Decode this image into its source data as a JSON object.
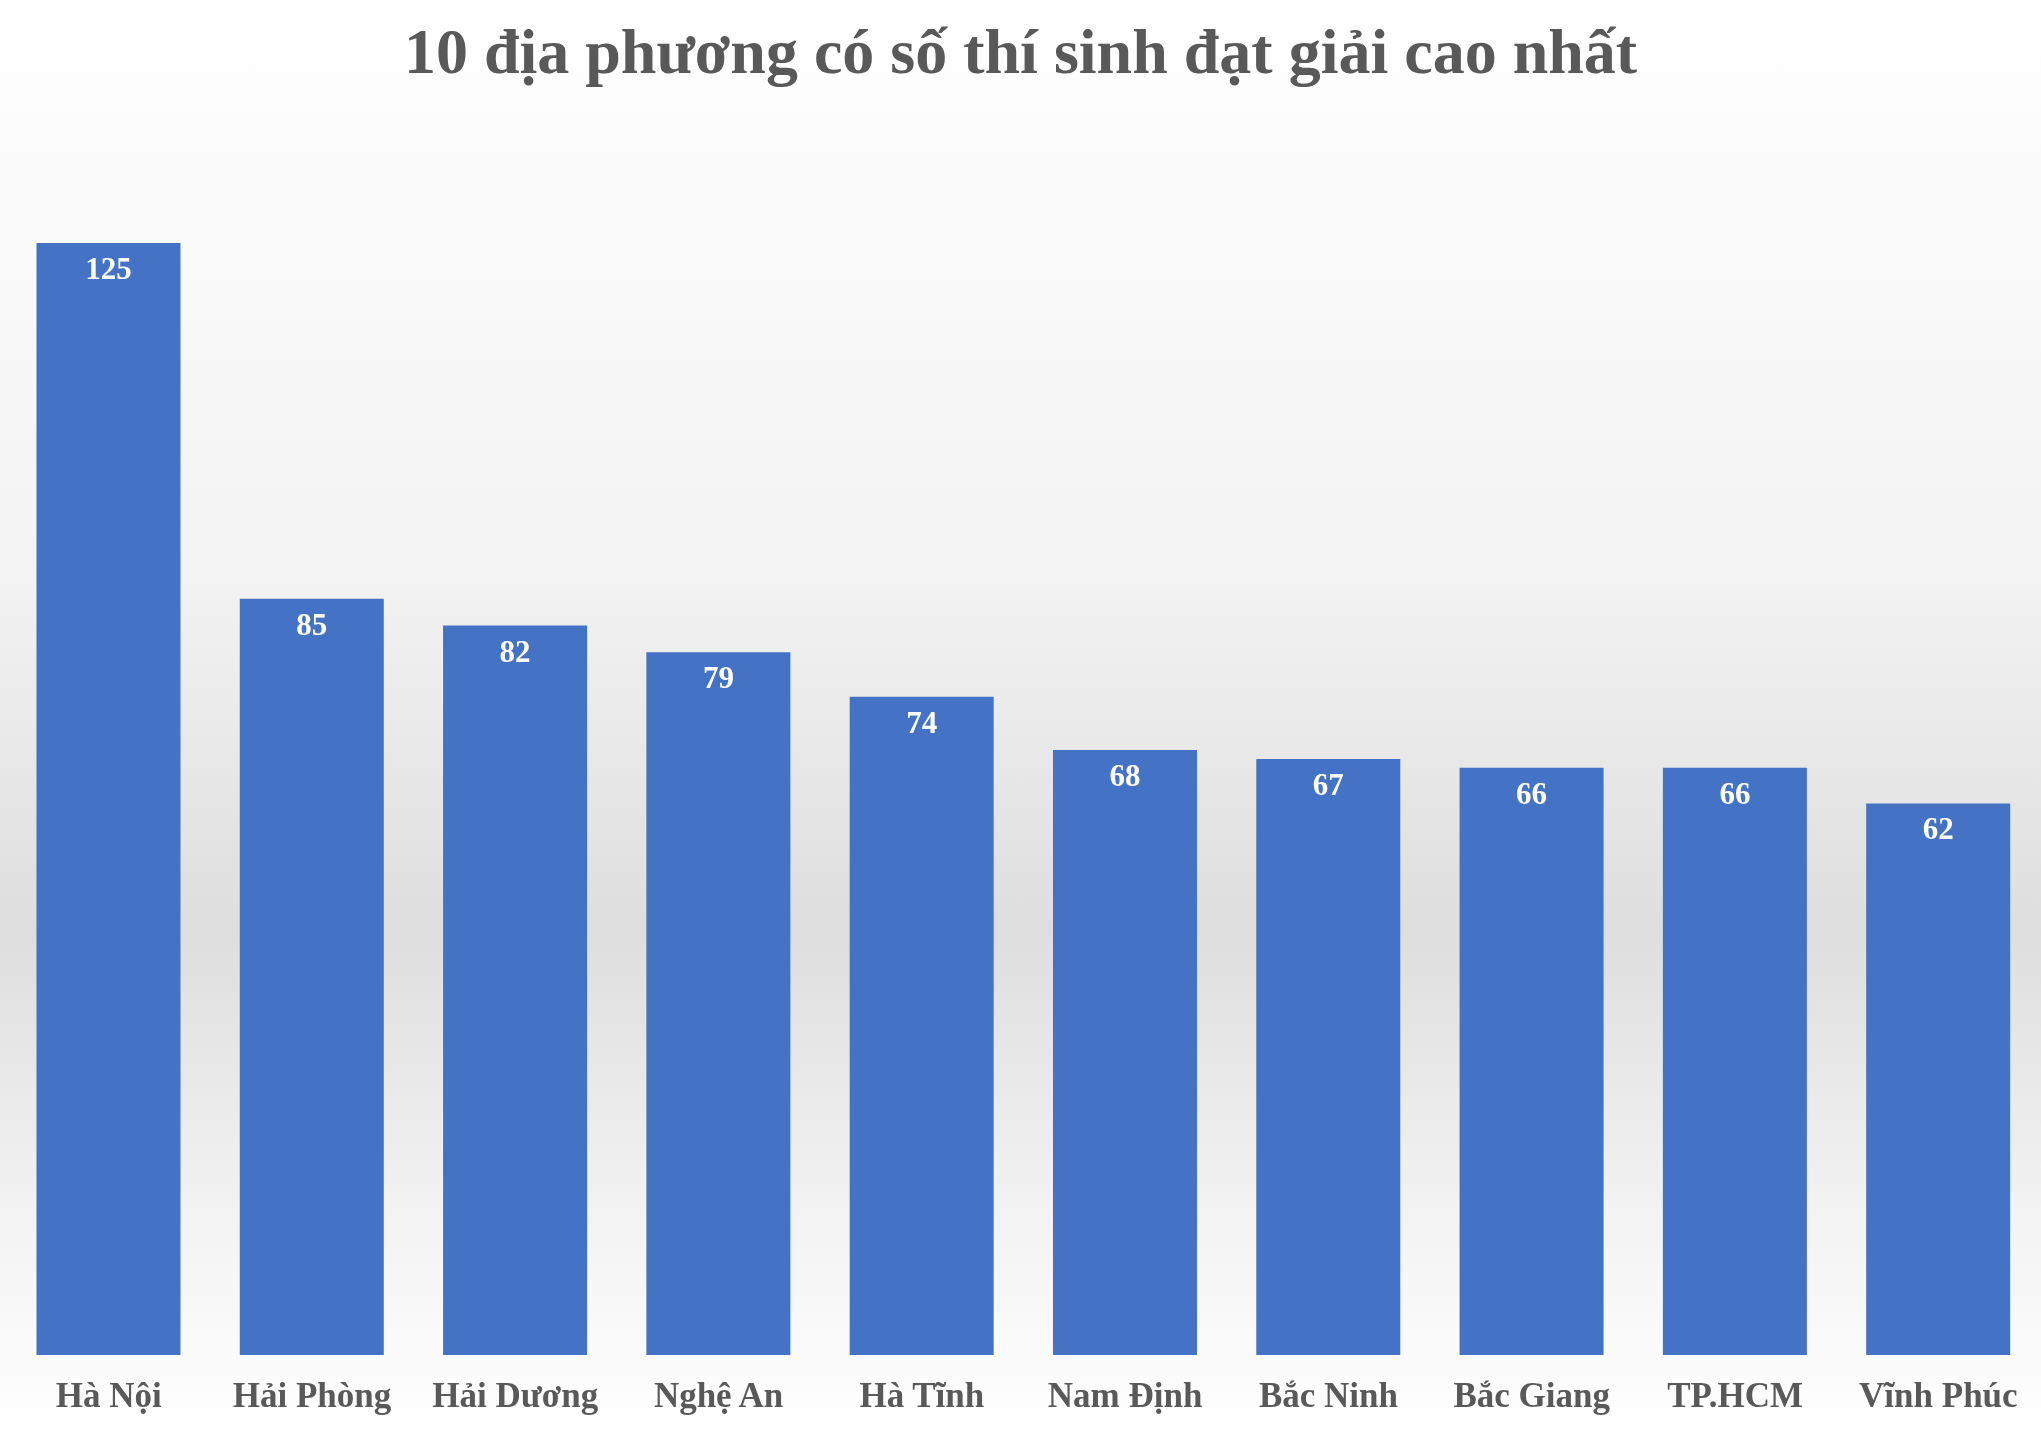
{
  "chart_data": {
    "type": "bar",
    "title": "10 địa phương có số thí sinh đạt giải cao nhất",
    "categories": [
      "Hà Nội",
      "Hải Phòng",
      "Hải Dương",
      "Nghệ An",
      "Hà Tĩnh",
      "Nam Định",
      "Bắc Ninh",
      "Bắc Giang",
      "TP.HCM",
      "Vĩnh Phúc"
    ],
    "values": [
      125,
      85,
      82,
      79,
      74,
      68,
      67,
      66,
      66,
      62
    ],
    "color": "#4472c4",
    "data_labels": true
  }
}
